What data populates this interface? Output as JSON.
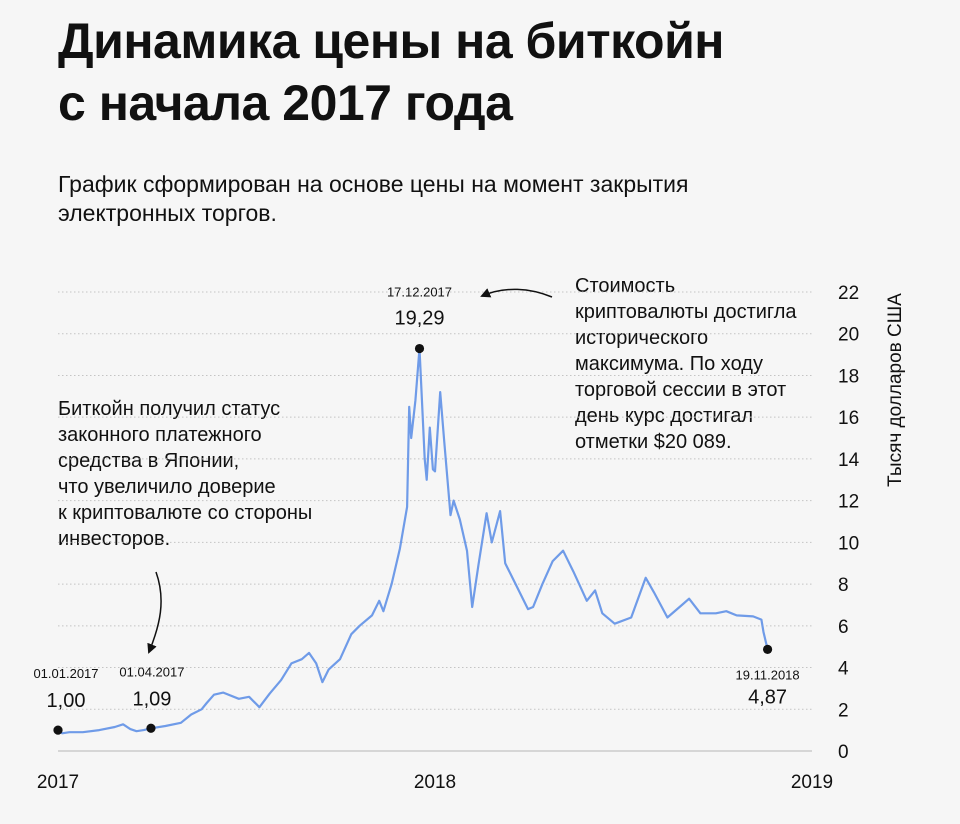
{
  "title_line1": "Динамика цены на биткойн",
  "title_line2": "с начала 2017 года",
  "subtitle_line1": "График сформирован на основе цены на момент закрытия",
  "subtitle_line2": "электронных торгов.",
  "note_left": [
    "Биткойн получил статус",
    "законного платежного",
    "средства в Японии,",
    "что увеличило доверие",
    "к криптовалюте со стороны",
    "инвесторов."
  ],
  "note_right": [
    "Стоимость",
    "криптовалюты достигла",
    "исторического",
    "максимума. По ходу",
    "торговой сессии в этот",
    "день курс достигал",
    "отметки $20 089."
  ],
  "colors": {
    "line": "#6f9be8",
    "grid": "#c4c4c4",
    "dot": "#111111",
    "background": "#f6f6f6"
  },
  "chart_data": {
    "type": "line",
    "title": "Динамика цены на биткойн с начала 2017 года",
    "ylabel": "Тысяч долларов США",
    "xlabel": "",
    "ylim": [
      0,
      22
    ],
    "yticks": [
      "0",
      "2",
      "4",
      "6",
      "8",
      "10",
      "12",
      "14",
      "16",
      "18",
      "20",
      "22"
    ],
    "xlim": [
      "2017-01-01",
      "2019-01-01"
    ],
    "xticks": [
      "2017",
      "2018",
      "2019"
    ],
    "grid": "horizontal dotted",
    "series": [
      {
        "x": [
          "2017-01-01",
          "2017-01-05",
          "2017-01-12",
          "2017-01-25",
          "2017-02-10",
          "2017-02-25",
          "2017-03-05",
          "2017-03-12",
          "2017-03-18",
          "2017-03-25",
          "2017-04-01",
          "2017-04-15",
          "2017-04-30",
          "2017-05-10",
          "2017-05-20",
          "2017-05-25",
          "2017-06-01",
          "2017-06-10",
          "2017-06-25",
          "2017-07-05",
          "2017-07-15",
          "2017-07-25",
          "2017-08-05",
          "2017-08-15",
          "2017-08-25",
          "2017-09-01",
          "2017-09-08",
          "2017-09-14",
          "2017-09-20",
          "2017-10-01",
          "2017-10-12",
          "2017-10-20",
          "2017-11-01",
          "2017-11-08",
          "2017-11-12",
          "2017-11-20",
          "2017-11-28",
          "2017-12-05",
          "2017-12-07",
          "2017-12-09",
          "2017-12-13",
          "2017-12-17",
          "2017-12-22",
          "2017-12-24",
          "2017-12-27",
          "2017-12-30",
          "2018-01-01",
          "2018-01-06",
          "2018-01-10",
          "2018-01-16",
          "2018-01-19",
          "2018-01-25",
          "2018-02-01",
          "2018-02-06",
          "2018-02-12",
          "2018-02-20",
          "2018-02-25",
          "2018-03-05",
          "2018-03-10",
          "2018-03-18",
          "2018-04-01",
          "2018-04-06",
          "2018-04-15",
          "2018-04-25",
          "2018-05-05",
          "2018-05-15",
          "2018-05-28",
          "2018-06-05",
          "2018-06-12",
          "2018-06-24",
          "2018-07-10",
          "2018-07-24",
          "2018-08-01",
          "2018-08-14",
          "2018-08-28",
          "2018-09-04",
          "2018-09-15",
          "2018-09-30",
          "2018-10-10",
          "2018-10-20",
          "2018-11-05",
          "2018-11-13",
          "2018-11-15",
          "2018-11-19"
        ],
        "values": [
          1.0,
          0.85,
          0.9,
          0.9,
          1.0,
          1.15,
          1.28,
          1.05,
          0.95,
          1.0,
          1.09,
          1.2,
          1.35,
          1.75,
          2.0,
          2.3,
          2.7,
          2.8,
          2.5,
          2.6,
          2.1,
          2.75,
          3.4,
          4.2,
          4.4,
          4.7,
          4.2,
          3.3,
          3.9,
          4.4,
          5.6,
          6.0,
          6.5,
          7.2,
          6.7,
          8.0,
          9.7,
          11.7,
          16.5,
          15.0,
          16.8,
          19.29,
          14.0,
          13.0,
          15.5,
          13.5,
          13.4,
          17.2,
          14.8,
          11.3,
          12.0,
          11.1,
          9.6,
          6.9,
          8.9,
          11.4,
          10.0,
          11.5,
          9.0,
          8.2,
          6.8,
          6.9,
          8.0,
          9.1,
          9.6,
          8.6,
          7.2,
          7.7,
          6.6,
          6.1,
          6.4,
          8.3,
          7.6,
          6.4,
          7.0,
          7.3,
          6.6,
          6.6,
          6.7,
          6.5,
          6.45,
          6.3,
          5.7,
          4.87
        ]
      }
    ],
    "annotations": [
      {
        "date_label": "01.01.2017",
        "value_label": "1,00",
        "x": "2017-01-01",
        "y": 1.0
      },
      {
        "date_label": "01.04.2017",
        "value_label": "1,09",
        "x": "2017-04-01",
        "y": 1.09
      },
      {
        "date_label": "17.12.2017",
        "value_label": "19,29",
        "x": "2017-12-17",
        "y": 19.29
      },
      {
        "date_label": "19.11.2018",
        "value_label": "4,87",
        "x": "2018-11-19",
        "y": 4.87
      }
    ]
  }
}
